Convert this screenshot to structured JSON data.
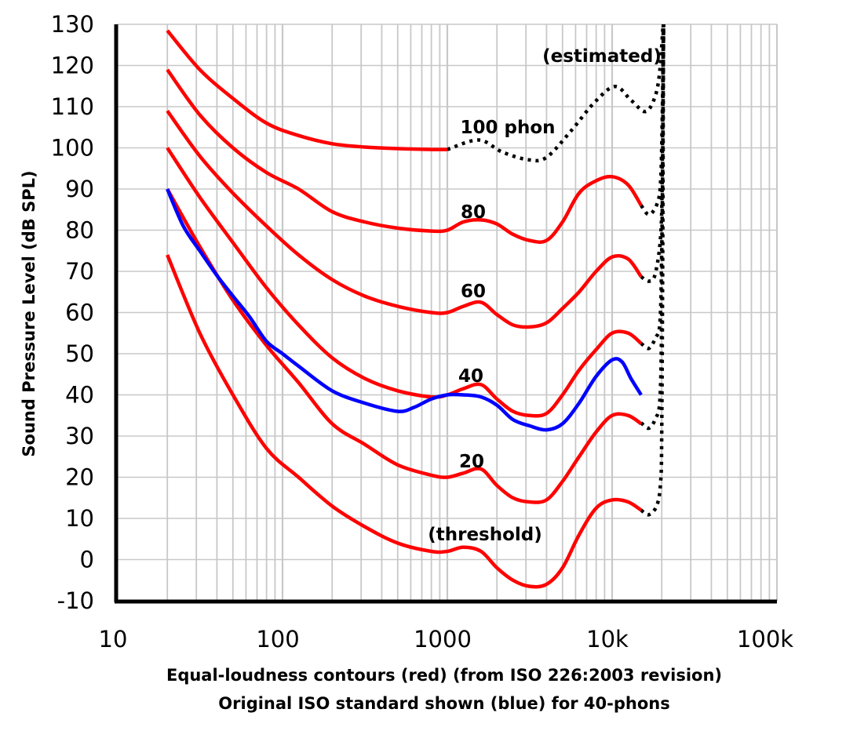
{
  "chart_data": {
    "type": "line",
    "xscale": "log",
    "xlim": [
      10,
      100000
    ],
    "ylim": [
      -10,
      130
    ],
    "grid": true,
    "ylabel": "Sound Pressure Level (dB SPL)",
    "xlabel": [
      "Equal-loudness contours (red) (from ISO 226:2003 revision)",
      "Original ISO standard shown (blue) for 40-phons"
    ],
    "xticks": [
      {
        "value": 10,
        "label": "10"
      },
      {
        "value": 100,
        "label": "100"
      },
      {
        "value": 1000,
        "label": "1000"
      },
      {
        "value": 10000,
        "label": "10k"
      },
      {
        "value": 100000,
        "label": "100k"
      }
    ],
    "yticks": [
      130,
      120,
      110,
      100,
      90,
      80,
      70,
      60,
      50,
      40,
      30,
      20,
      10,
      0,
      -10
    ],
    "ytick_labels": [
      "130",
      "120",
      "110",
      "100",
      "90",
      "80",
      "70",
      "60",
      "50",
      "40",
      "30",
      "20",
      "10",
      "0",
      "-10"
    ],
    "colors": {
      "iso2003": "#ff0000",
      "original": "#0000ff",
      "estimated": "#000000"
    },
    "series": [
      {
        "name": "100 phon",
        "color": "#ff0000",
        "points": [
          [
            20,
            128.5
          ],
          [
            31.5,
            119
          ],
          [
            50,
            112
          ],
          [
            80,
            106
          ],
          [
            125,
            103
          ],
          [
            200,
            101
          ],
          [
            315,
            100.2
          ],
          [
            500,
            99.8
          ],
          [
            800,
            99.6
          ],
          [
            1000,
            99.6
          ]
        ]
      },
      {
        "name": "80",
        "color": "#ff0000",
        "points": [
          [
            20,
            119
          ],
          [
            31.5,
            108
          ],
          [
            50,
            100
          ],
          [
            80,
            94
          ],
          [
            125,
            90
          ],
          [
            200,
            84.5
          ],
          [
            315,
            82
          ],
          [
            500,
            80.5
          ],
          [
            800,
            79.8
          ],
          [
            1000,
            80
          ],
          [
            1250,
            82
          ],
          [
            1600,
            82.5
          ],
          [
            2000,
            81.5
          ],
          [
            2500,
            79
          ],
          [
            3150,
            77.5
          ],
          [
            4000,
            77.5
          ],
          [
            5000,
            82
          ],
          [
            6300,
            89
          ],
          [
            8000,
            92
          ],
          [
            10000,
            93
          ],
          [
            12500,
            91
          ],
          [
            15000,
            86
          ]
        ]
      },
      {
        "name": "60",
        "color": "#ff0000",
        "points": [
          [
            20,
            109
          ],
          [
            31.5,
            98
          ],
          [
            50,
            89
          ],
          [
            80,
            81
          ],
          [
            125,
            74
          ],
          [
            200,
            68
          ],
          [
            315,
            64
          ],
          [
            500,
            61.5
          ],
          [
            800,
            60
          ],
          [
            1000,
            60
          ],
          [
            1250,
            61.5
          ],
          [
            1600,
            62.5
          ],
          [
            2000,
            59.5
          ],
          [
            2500,
            57
          ],
          [
            3150,
            56.5
          ],
          [
            4000,
            57.5
          ],
          [
            5000,
            61
          ],
          [
            6300,
            65
          ],
          [
            8000,
            70
          ],
          [
            10000,
            73.5
          ],
          [
            12500,
            73
          ],
          [
            15000,
            68.7
          ]
        ]
      },
      {
        "name": "40",
        "color": "#ff0000",
        "points": [
          [
            20,
            100
          ],
          [
            31.5,
            88
          ],
          [
            50,
            77
          ],
          [
            80,
            66
          ],
          [
            125,
            57
          ],
          [
            200,
            49
          ],
          [
            315,
            44
          ],
          [
            500,
            41
          ],
          [
            800,
            39.5
          ],
          [
            1000,
            40
          ],
          [
            1250,
            41.5
          ],
          [
            1600,
            42.5
          ],
          [
            2000,
            39
          ],
          [
            2500,
            36
          ],
          [
            3150,
            35
          ],
          [
            4000,
            35.5
          ],
          [
            5000,
            40
          ],
          [
            6300,
            46
          ],
          [
            8000,
            51
          ],
          [
            10000,
            55
          ],
          [
            12500,
            55
          ],
          [
            15000,
            52.5
          ]
        ]
      },
      {
        "name": "20",
        "color": "#ff0000",
        "points": [
          [
            20,
            90
          ],
          [
            31.5,
            76
          ],
          [
            50,
            63
          ],
          [
            80,
            52
          ],
          [
            125,
            43
          ],
          [
            200,
            33
          ],
          [
            315,
            28
          ],
          [
            500,
            23
          ],
          [
            800,
            20.5
          ],
          [
            1000,
            20
          ],
          [
            1250,
            21
          ],
          [
            1600,
            22
          ],
          [
            2000,
            18
          ],
          [
            2500,
            15
          ],
          [
            3150,
            14
          ],
          [
            4000,
            14.5
          ],
          [
            5000,
            19
          ],
          [
            6300,
            25
          ],
          [
            8000,
            31
          ],
          [
            10000,
            35
          ],
          [
            12500,
            35
          ],
          [
            15000,
            33
          ]
        ]
      },
      {
        "name": "(threshold)",
        "color": "#ff0000",
        "points": [
          [
            20,
            74
          ],
          [
            31.5,
            55
          ],
          [
            50,
            40
          ],
          [
            80,
            27
          ],
          [
            125,
            20
          ],
          [
            200,
            13
          ],
          [
            315,
            8
          ],
          [
            500,
            4
          ],
          [
            800,
            2
          ],
          [
            1000,
            2
          ],
          [
            1250,
            3
          ],
          [
            1600,
            2
          ],
          [
            2000,
            -2
          ],
          [
            2500,
            -5
          ],
          [
            3150,
            -6.5
          ],
          [
            4000,
            -6
          ],
          [
            5000,
            -2
          ],
          [
            6300,
            6
          ],
          [
            8000,
            12.5
          ],
          [
            10000,
            14.5
          ],
          [
            12500,
            14
          ],
          [
            15000,
            12
          ]
        ]
      },
      {
        "color": "#0000ff",
        "points": [
          [
            20,
            90
          ],
          [
            25,
            81
          ],
          [
            31.5,
            75
          ],
          [
            40,
            69
          ],
          [
            50,
            64
          ],
          [
            63,
            59
          ],
          [
            80,
            53
          ],
          [
            100,
            50
          ],
          [
            125,
            47
          ],
          [
            200,
            41
          ],
          [
            315,
            38
          ],
          [
            500,
            36
          ],
          [
            630,
            37
          ],
          [
            800,
            39
          ],
          [
            1000,
            40
          ],
          [
            1250,
            40
          ],
          [
            1600,
            39.5
          ],
          [
            2000,
            37.5
          ],
          [
            2500,
            34
          ],
          [
            3150,
            32.5
          ],
          [
            4000,
            31.5
          ],
          [
            5000,
            33
          ],
          [
            6300,
            38
          ],
          [
            8000,
            44.5
          ],
          [
            10000,
            48.5
          ],
          [
            11500,
            48
          ],
          [
            13000,
            44
          ],
          [
            15000,
            40
          ]
        ]
      }
    ],
    "estimated": {
      "name": "(estimated)",
      "color": "#000000",
      "style": "dotted",
      "segments": [
        [
          [
            1000,
            99.6
          ],
          [
            1550,
            101.9
          ],
          [
            2150,
            99
          ],
          [
            3100,
            97.1
          ],
          [
            4000,
            97.7
          ],
          [
            5600,
            104
          ],
          [
            7800,
            111
          ],
          [
            10400,
            114.9
          ],
          [
            13000,
            111.6
          ],
          [
            15800,
            108.8
          ],
          [
            17900,
            111.6
          ],
          [
            19300,
            117.4
          ],
          [
            20400,
            130
          ]
        ],
        [
          [
            15000,
            86
          ],
          [
            16700,
            83.8
          ],
          [
            18700,
            86.3
          ],
          [
            19700,
            92
          ],
          [
            20200,
            110
          ],
          [
            20500,
            130
          ]
        ],
        [
          [
            15000,
            68.7
          ],
          [
            16700,
            67.6
          ],
          [
            18300,
            69.5
          ],
          [
            19800,
            80
          ],
          [
            20200,
            100
          ],
          [
            20500,
            130
          ]
        ],
        [
          [
            15000,
            52.5
          ],
          [
            16700,
            51.3
          ],
          [
            18300,
            53.8
          ],
          [
            19500,
            57.6
          ],
          [
            20000,
            75
          ],
          [
            20300,
            100
          ],
          [
            20500,
            130
          ]
        ],
        [
          [
            15000,
            33.2
          ],
          [
            16700,
            31.9
          ],
          [
            18300,
            34.2
          ],
          [
            19500,
            39
          ],
          [
            20000,
            60
          ],
          [
            20300,
            100
          ],
          [
            20500,
            130
          ]
        ],
        [
          [
            15000,
            12
          ],
          [
            16700,
            10.9
          ],
          [
            18700,
            13.2
          ],
          [
            19700,
            18.9
          ],
          [
            20000,
            31.5
          ],
          [
            20300,
            80
          ],
          [
            20500,
            130
          ]
        ]
      ]
    }
  }
}
